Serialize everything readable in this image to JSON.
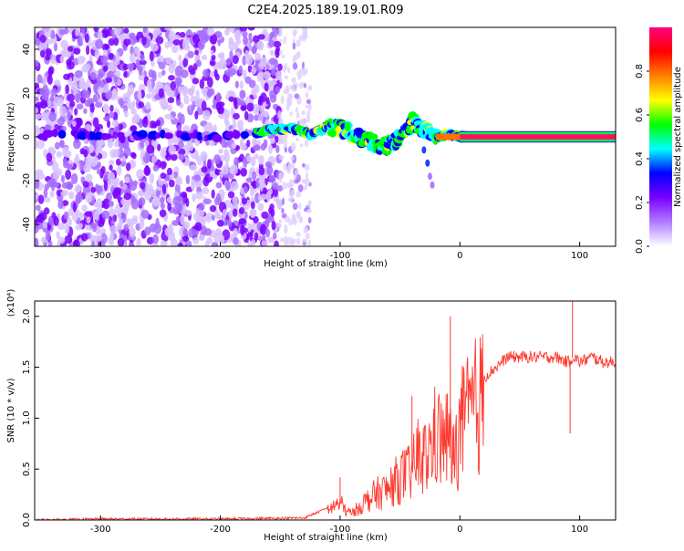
{
  "page_title": "C2E4.2025.189.19.01.R09",
  "chart_data": [
    {
      "type": "heatmap",
      "xlabel": "Height of straight line (km)",
      "ylabel": "Frequency (Hz)",
      "xlim": [
        -355,
        130
      ],
      "ylim": [
        -50,
        50
      ],
      "x_ticks": [
        -300,
        -200,
        -100,
        0,
        100
      ],
      "x_tick_labels": [
        "-300",
        "-200",
        "-100",
        "0",
        "100"
      ],
      "y_ticks": [
        -40,
        -20,
        0,
        20,
        40
      ],
      "y_tick_labels": [
        "-40",
        "-20",
        "0",
        "20",
        "40"
      ],
      "colorbar": {
        "label": "Normalized spectral amplitude",
        "range": [
          0,
          1
        ],
        "ticks": [
          0.0,
          0.2,
          0.4,
          0.6,
          0.8
        ],
        "tick_labels": [
          "0.0",
          "0.2",
          "0.4",
          "0.6",
          "0.8"
        ],
        "colors": [
          "#ffffff",
          "#b07cff",
          "#7a00ff",
          "#0000ff",
          "#00ffff",
          "#00ff00",
          "#ffff00",
          "#ff8000",
          "#ff0000",
          "#ff0080"
        ]
      },
      "noise_region_x": [
        -355,
        -150
      ],
      "sparse_noise_region_x": [
        -150,
        -125
      ],
      "ridge": [
        {
          "x": -345,
          "freq": 1
        },
        {
          "x": -320,
          "freq": 1
        },
        {
          "x": -280,
          "freq": 0
        },
        {
          "x": -250,
          "freq": 1
        },
        {
          "x": -210,
          "freq": 0
        },
        {
          "x": -175,
          "freq": 1
        },
        {
          "x": -160,
          "freq": 3
        },
        {
          "x": -140,
          "freq": 4
        },
        {
          "x": -125,
          "freq": 1
        },
        {
          "x": -110,
          "freq": 5
        },
        {
          "x": -95,
          "freq": 3
        },
        {
          "x": -85,
          "freq": 0
        },
        {
          "x": -70,
          "freq": -3
        },
        {
          "x": -60,
          "freq": -4
        },
        {
          "x": -52,
          "freq": -1
        },
        {
          "x": -45,
          "freq": 3
        },
        {
          "x": -40,
          "freq": 7
        },
        {
          "x": -32,
          "freq": 4
        },
        {
          "x": -25,
          "freq": 1
        },
        {
          "x": -18,
          "freq": 0
        },
        {
          "x": -10,
          "freq": 1
        },
        {
          "x": 0,
          "freq": 0
        },
        {
          "x": 20,
          "freq": 0
        },
        {
          "x": 60,
          "freq": 0
        },
        {
          "x": 100,
          "freq": 0
        },
        {
          "x": 130,
          "freq": 0
        }
      ],
      "branch": [
        {
          "x": -30,
          "freq": -6
        },
        {
          "x": -27,
          "freq": -12
        },
        {
          "x": -25,
          "freq": -18
        },
        {
          "x": -23,
          "freq": -22
        }
      ]
    },
    {
      "type": "line",
      "xlabel": "Height of straight line (km)",
      "ylabel": "SNR (10 * v/v)",
      "y_scale_label": "(x10⁴)",
      "xlim": [
        -355,
        130
      ],
      "ylim": [
        0,
        2.15
      ],
      "x_ticks": [
        -300,
        -200,
        -100,
        0,
        100
      ],
      "x_tick_labels": [
        "-300",
        "-200",
        "-100",
        "0",
        "100"
      ],
      "y_ticks": [
        0.0,
        0.5,
        1.0,
        1.5,
        2.0
      ],
      "y_tick_labels": [
        "0.0",
        "0.5",
        "1.0",
        "1.5",
        "2.0"
      ],
      "series_color": "#ff3a30",
      "series": [
        {
          "x": [
            -355,
            -300,
            -200,
            -130,
            -110,
            -100,
            -95,
            -90,
            -80,
            -70,
            -60,
            -50,
            -40,
            -35,
            -30,
            -25,
            -20,
            -15,
            -10,
            -5,
            0,
            10,
            20,
            30,
            40,
            60,
            80,
            90,
            95,
            100,
            110,
            120,
            130
          ],
          "y": [
            0.0,
            0.01,
            0.01,
            0.02,
            0.12,
            0.2,
            0.1,
            0.08,
            0.2,
            0.3,
            0.35,
            0.5,
            0.55,
            0.75,
            0.7,
            0.8,
            1.0,
            0.9,
            0.95,
            0.7,
            1.05,
            1.25,
            1.4,
            1.5,
            1.6,
            1.6,
            1.6,
            1.55,
            1.6,
            1.55,
            1.6,
            1.55,
            1.55
          ]
        }
      ],
      "spikes": [
        {
          "x": -100,
          "y": 0.42
        },
        {
          "x": -40,
          "y": 1.22
        },
        {
          "x": -8,
          "y": 2.0
        },
        {
          "x": 92,
          "y": 0.85
        },
        {
          "x": 94,
          "y": 2.15
        }
      ]
    }
  ]
}
